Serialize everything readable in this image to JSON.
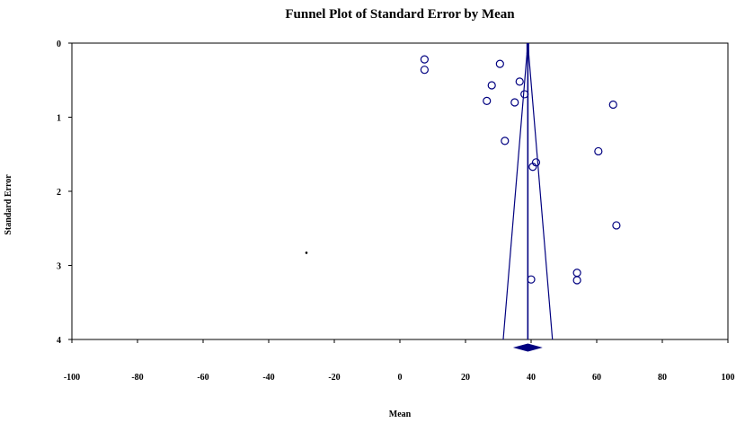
{
  "chart_data": {
    "type": "scatter",
    "title": "Funnel Plot of Standard Error by Mean",
    "xlabel": "Mean",
    "ylabel": "Standard Error",
    "xlim": [
      -100,
      100
    ],
    "ylim": [
      0,
      4
    ],
    "y_inverted": true,
    "x_ticks": [
      -100,
      -80,
      -60,
      -40,
      -20,
      0,
      20,
      40,
      60,
      80,
      100
    ],
    "y_ticks": [
      0,
      1,
      2,
      3,
      4
    ],
    "grid": false,
    "colors": {
      "points": "#000080",
      "funnel": "#000080",
      "summary": "#000080",
      "axes": "#000000"
    },
    "series": [
      {
        "values": [
          {
            "x": 7.5,
            "y": 0.22
          },
          {
            "x": 7.5,
            "y": 0.36
          },
          {
            "x": 30.5,
            "y": 0.28
          },
          {
            "x": 36.5,
            "y": 0.52
          },
          {
            "x": 28,
            "y": 0.57
          },
          {
            "x": 38,
            "y": 0.69
          },
          {
            "x": 26.5,
            "y": 0.78
          },
          {
            "x": 35,
            "y": 0.8
          },
          {
            "x": 65,
            "y": 0.83
          },
          {
            "x": 32,
            "y": 1.32
          },
          {
            "x": 60.5,
            "y": 1.46
          },
          {
            "x": 41.5,
            "y": 1.61
          },
          {
            "x": 40.5,
            "y": 1.67
          },
          {
            "x": 66,
            "y": 2.46
          },
          {
            "x": 54,
            "y": 3.1
          },
          {
            "x": 54,
            "y": 3.2
          },
          {
            "x": 40,
            "y": 3.19
          }
        ]
      }
    ],
    "stray_point": {
      "x": -28.5,
      "y": 2.83
    },
    "summary_mean": 39,
    "funnel": {
      "apex_y": 0,
      "base_y": 4,
      "base_left_x": 31.5,
      "base_right_x": 46.5
    },
    "summary_diamond": {
      "center_x": 39,
      "lower_x": 35,
      "upper_x": 43
    }
  }
}
